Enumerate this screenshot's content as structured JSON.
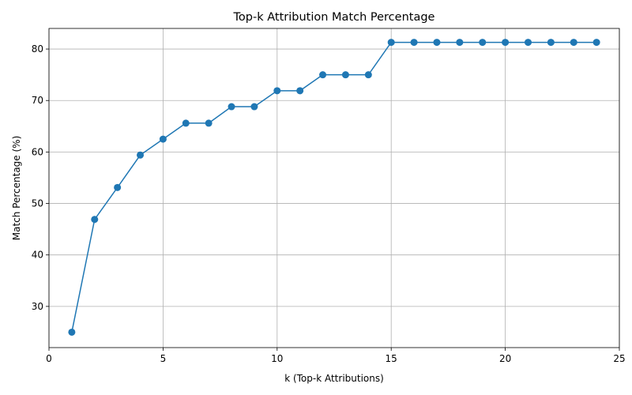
{
  "chart_data": {
    "type": "line",
    "title": "Top-k Attribution Match Percentage",
    "xlabel": "k (Top-k Attributions)",
    "ylabel": "Match Percentage (%)",
    "xlim": [
      0,
      25
    ],
    "ylim": [
      22,
      84
    ],
    "xticks": [
      0,
      5,
      10,
      15,
      20,
      25
    ],
    "yticks": [
      30,
      40,
      50,
      60,
      70,
      80
    ],
    "grid": true,
    "marker": "circle",
    "color": "#1f77b4",
    "x": [
      1,
      2,
      3,
      4,
      5,
      6,
      7,
      8,
      9,
      10,
      11,
      12,
      13,
      14,
      15,
      16,
      17,
      18,
      19,
      20,
      21,
      22,
      23,
      24
    ],
    "series": [
      {
        "values": [
          25.0,
          46.9,
          53.1,
          59.4,
          62.5,
          65.6,
          65.6,
          68.8,
          68.8,
          71.9,
          71.9,
          75.0,
          75.0,
          75.0,
          81.3,
          81.3,
          81.3,
          81.3,
          81.3,
          81.3,
          81.3,
          81.3,
          81.3,
          81.3
        ]
      }
    ]
  }
}
